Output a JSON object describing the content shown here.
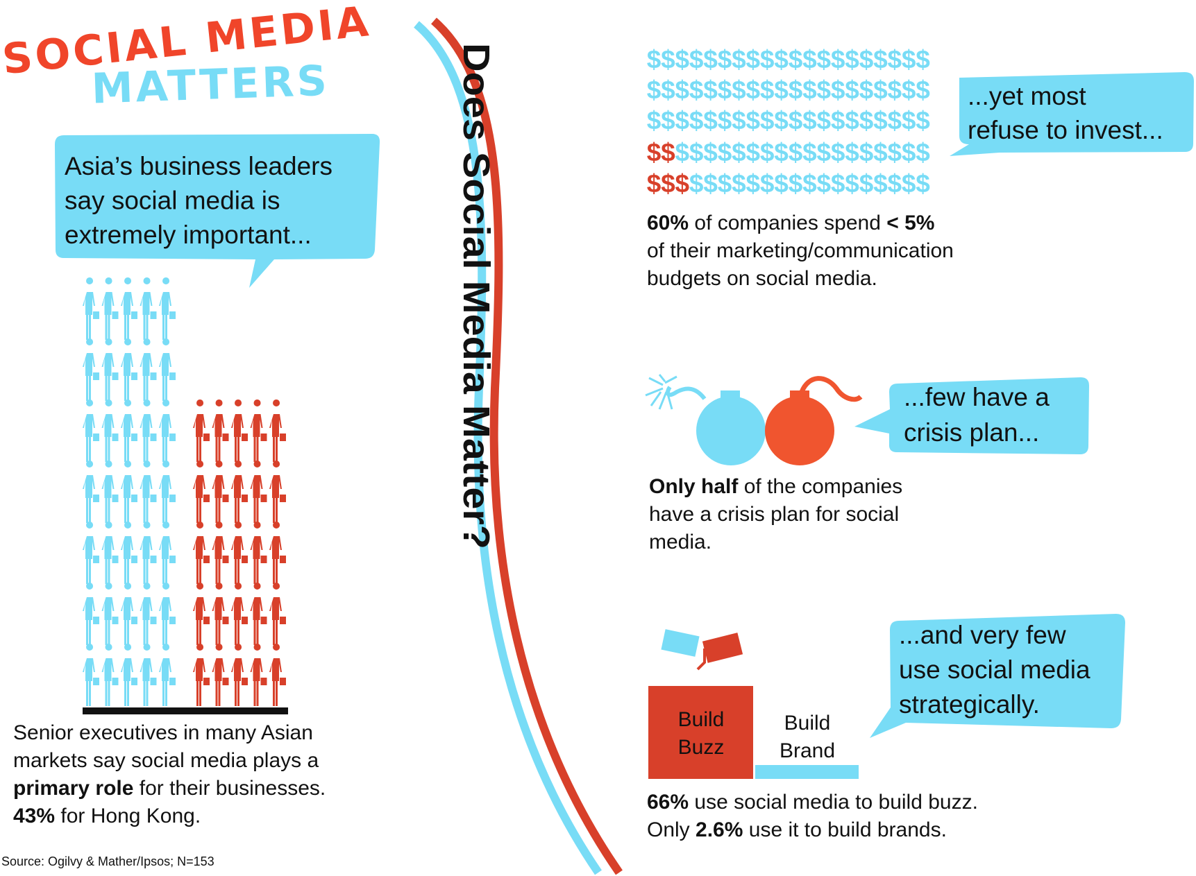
{
  "title": {
    "line1": "SOCIAL MEDIA",
    "line2": "MATTERS"
  },
  "headline": "Does Social Media Matter?",
  "source": "Source: Ogilvy & Mather/Ipsos; N=153",
  "leaders": {
    "bubble": [
      "Asia’s business leaders",
      "say social media is",
      "extremely important..."
    ],
    "caption": [
      [
        {
          "text": "Senior executives in many Asian"
        }
      ],
      [
        {
          "text": "markets say social media plays a"
        }
      ],
      [
        {
          "text": "primary role",
          "bold": true
        },
        {
          "text": " for their businesses."
        }
      ],
      [
        {
          "text": "43%",
          "bold": true
        },
        {
          "text": " for Hong Kong."
        }
      ]
    ]
  },
  "spending": {
    "symbol": "$",
    "bubble": [
      "...yet most",
      "refuse to invest..."
    ],
    "caption": [
      [
        {
          "text": "60%",
          "bold": true
        },
        {
          "text": " of companies spend "
        },
        {
          "text": "< 5%",
          "bold": true
        }
      ],
      [
        {
          "text": "of their marketing/communication"
        }
      ],
      [
        {
          "text": "budgets on social media."
        }
      ]
    ]
  },
  "crisis": {
    "bubble": [
      "...few have a",
      "crisis plan..."
    ],
    "caption": [
      [
        {
          "text": "Only half",
          "bold": true
        },
        {
          "text": " of the companies"
        }
      ],
      [
        {
          "text": "have a crisis plan for social"
        }
      ],
      [
        {
          "text": "media."
        }
      ]
    ]
  },
  "strategy": {
    "bubble": [
      "...and very few",
      "use social media",
      "strategically."
    ],
    "bars": [
      [
        "Build",
        "Buzz"
      ],
      [
        "Build",
        "Brand"
      ]
    ],
    "caption": [
      [
        {
          "text": "66%",
          "bold": true
        },
        {
          "text": " use social media to build buzz."
        }
      ],
      [
        {
          "text": "Only "
        },
        {
          "text": "2.6%",
          "bold": true
        },
        {
          "text": " use it to build brands."
        }
      ]
    ]
  }
}
